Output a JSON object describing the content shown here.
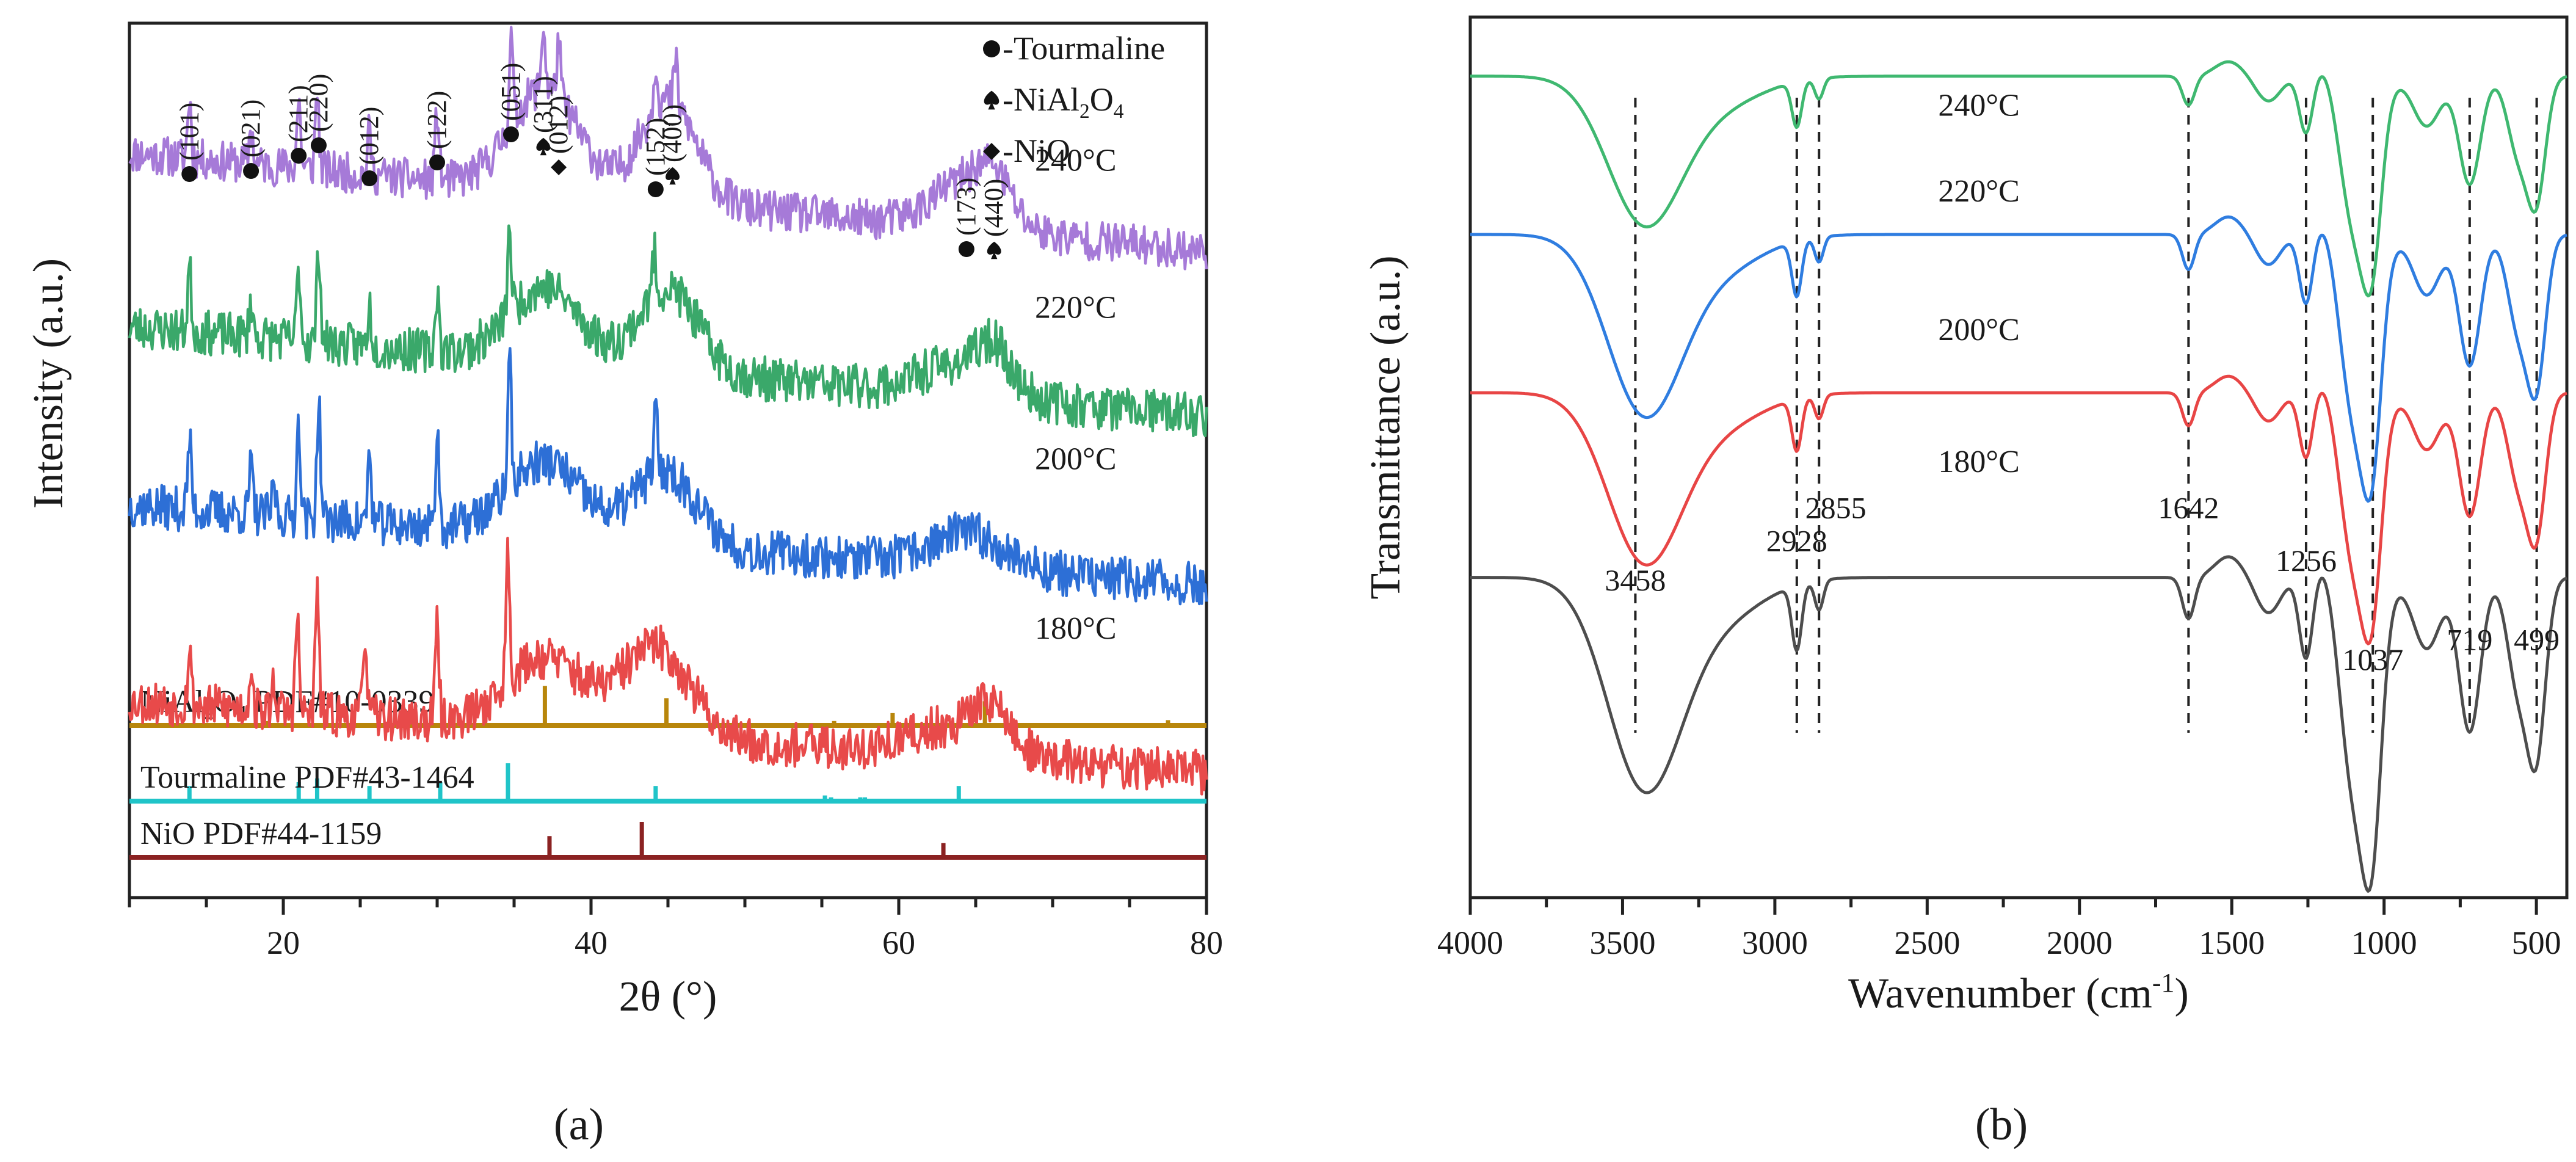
{
  "figure": {
    "panel_a_label": "(a)",
    "panel_b_label": "(b)"
  },
  "chart_data": [
    {
      "type": "line",
      "title": "",
      "xlabel": "2θ (°)",
      "ylabel": "Intensity (a.u.)",
      "xlim": [
        10,
        80
      ],
      "x_ticks": [
        20,
        40,
        60,
        80
      ],
      "x_tick_labels": [
        "20",
        "40",
        "60",
        "80"
      ],
      "colors": {
        "240": "#a67ad8",
        "220": "#3aa86a",
        "200": "#2d6fd6",
        "180": "#e84a4a"
      },
      "series": [
        {
          "name": "240°C",
          "color_key": "240",
          "baseline": 0.87,
          "tilt": 0.22,
          "noise": 0.045,
          "seed": 11,
          "peaks": [
            [
              13.9,
              0.42
            ],
            [
              17.9,
              0.26
            ],
            [
              21.0,
              0.48
            ],
            [
              22.2,
              0.56
            ],
            [
              25.6,
              0.3
            ],
            [
              30.0,
              0.5
            ],
            [
              34.8,
              0.62
            ],
            [
              36.9,
              0.45
            ],
            [
              37.9,
              0.4
            ],
            [
              44.2,
              0.32
            ],
            [
              45.5,
              0.3
            ]
          ],
          "humps": [
            [
              37.0,
              2.2,
              0.72
            ],
            [
              45.0,
              1.8,
              0.72
            ],
            [
              64.5,
              2.2,
              0.34
            ],
            [
              66.2,
              1.0,
              0.22
            ]
          ]
        },
        {
          "name": "220°C",
          "color_key": "220",
          "baseline": 0.5,
          "tilt": 0.2,
          "noise": 0.05,
          "seed": 23,
          "peaks": [
            [
              13.9,
              0.45
            ],
            [
              17.9,
              0.26
            ],
            [
              21.0,
              0.52
            ],
            [
              22.3,
              0.68
            ],
            [
              25.6,
              0.28
            ],
            [
              30.0,
              0.44
            ],
            [
              34.7,
              0.6
            ],
            [
              44.1,
              0.3
            ]
          ],
          "humps": [
            [
              37.0,
              2.3,
              0.52
            ],
            [
              45.0,
              1.9,
              0.58
            ],
            [
              64.0,
              2.5,
              0.22
            ],
            [
              66.2,
              1.0,
              0.25
            ]
          ]
        },
        {
          "name": "200°C",
          "color_key": "200",
          "baseline": 0.12,
          "tilt": 0.18,
          "noise": 0.05,
          "seed": 37,
          "peaks": [
            [
              13.9,
              0.48
            ],
            [
              17.9,
              0.34
            ],
            [
              19.4,
              0.22
            ],
            [
              21.0,
              0.68
            ],
            [
              22.3,
              0.82
            ],
            [
              25.6,
              0.48
            ],
            [
              30.0,
              0.68
            ],
            [
              34.7,
              0.9
            ],
            [
              44.2,
              0.42
            ]
          ],
          "humps": [
            [
              37.0,
              2.4,
              0.52
            ],
            [
              44.8,
              2.0,
              0.52
            ],
            [
              64.5,
              2.4,
              0.24
            ]
          ]
        },
        {
          "name": "180°C",
          "color_key": "180",
          "baseline": -0.3,
          "tilt": 0.16,
          "noise": 0.05,
          "seed": 53,
          "peaks": [
            [
              13.9,
              0.4
            ],
            [
              17.9,
              0.3
            ],
            [
              19.4,
              0.22
            ],
            [
              20.9,
              0.66
            ],
            [
              22.2,
              0.86
            ],
            [
              25.3,
              0.62
            ],
            [
              30.0,
              0.68
            ],
            [
              34.6,
              0.92
            ]
          ],
          "humps": [
            [
              37.0,
              2.5,
              0.5
            ],
            [
              44.2,
              2.2,
              0.62
            ],
            [
              64.0,
              2.8,
              0.22
            ],
            [
              66.0,
              1.0,
              0.24
            ]
          ]
        }
      ],
      "series_labels": [
        {
          "text": "240°C",
          "x": 71.5,
          "y": 1.05
        },
        {
          "text": "220°C",
          "x": 71.5,
          "y": 0.72
        },
        {
          "text": "200°C",
          "x": 71.5,
          "y": 0.38
        },
        {
          "text": "180°C",
          "x": 71.5,
          "y": 0.0
        }
      ],
      "peak_labels": [
        {
          "text": "(101)",
          "x": 13.9,
          "marker": "circle"
        },
        {
          "text": "(021)",
          "x": 17.9,
          "marker": "circle"
        },
        {
          "text": "(211)",
          "x": 21.0,
          "marker": "circle"
        },
        {
          "text": "(220)",
          "x": 22.3,
          "marker": "circle"
        },
        {
          "text": "(012)",
          "x": 25.6,
          "marker": "circle"
        },
        {
          "text": "(122)",
          "x": 30.0,
          "marker": "circle"
        },
        {
          "text": "(051)",
          "x": 34.8,
          "marker": "circle"
        },
        {
          "text": "(311)",
          "x": 36.9,
          "marker": "spade"
        },
        {
          "text": "(012)",
          "x": 37.9,
          "marker": "diamond"
        },
        {
          "text": "(152)",
          "x": 44.2,
          "marker": "circle"
        },
        {
          "text": "(400)",
          "x": 45.3,
          "marker": "spade"
        },
        {
          "text": "(173)",
          "x": 64.4,
          "marker": "circle"
        },
        {
          "text": "(440)",
          "x": 66.2,
          "marker": "spade"
        }
      ],
      "legend": [
        {
          "marker": "circle",
          "label": "-Tourmaline"
        },
        {
          "marker": "spade",
          "label": "-NiAl2O4",
          "formula": [
            "-NiAl",
            "2",
            "O",
            "4"
          ]
        },
        {
          "marker": "diamond",
          "label": "-NiO"
        }
      ],
      "references": [
        {
          "label": "NiAl2O4 PDF#10-0339",
          "formula": [
            "NiAl",
            "2",
            "O",
            "4",
            " PDF#10-0339"
          ],
          "color": "#b8860b",
          "lines": [
            [
              19.0,
              0.1
            ],
            [
              31.4,
              0.18
            ],
            [
              37.0,
              0.9
            ],
            [
              44.9,
              0.62
            ],
            [
              55.8,
              0.1
            ],
            [
              59.6,
              0.28
            ],
            [
              65.6,
              0.55
            ],
            [
              74.3,
              0.05
            ],
            [
              77.5,
              0.12
            ]
          ]
        },
        {
          "label": "Tourmaline PDF#43-1464",
          "color": "#20c4c8",
          "lines": [
            [
              13.9,
              0.4
            ],
            [
              21.0,
              0.5
            ],
            [
              22.2,
              0.6
            ],
            [
              25.6,
              0.4
            ],
            [
              30.2,
              0.5
            ],
            [
              34.6,
              1.0
            ],
            [
              44.2,
              0.4
            ],
            [
              55.2,
              0.15
            ],
            [
              55.6,
              0.1
            ],
            [
              57.5,
              0.1
            ],
            [
              57.8,
              0.1
            ],
            [
              63.9,
              0.4
            ]
          ]
        },
        {
          "label": "NiO PDF#44-1159",
          "color": "#8b2222",
          "lines": [
            [
              37.3,
              0.6
            ],
            [
              43.3,
              1.0
            ],
            [
              62.9,
              0.4
            ]
          ]
        }
      ]
    },
    {
      "type": "line",
      "title": "",
      "xlabel": "Wavenumber (cm-1)",
      "xlabel_parts": [
        "Wavenumber (cm",
        "-1",
        ")"
      ],
      "ylabel": "Transmittance (a.u.)",
      "xlim": [
        4000,
        400
      ],
      "x_ticks": [
        4000,
        3500,
        3000,
        2500,
        2000,
        1500,
        1000,
        500
      ],
      "x_tick_labels": [
        "4000",
        "3500",
        "3000",
        "2500",
        "2000",
        "1500",
        "1000",
        "500"
      ],
      "ylim": [
        0,
        1
      ],
      "colors": {
        "240": "#3fb870",
        "220": "#2f7de0",
        "200": "#e84545",
        "180": "#4d4d4d"
      },
      "series": [
        {
          "name": "240°C",
          "color_key": "240",
          "offset": 0.76,
          "scale": 0.7
        },
        {
          "name": "220°C",
          "color_key": "220",
          "offset": 0.52,
          "scale": 0.85
        },
        {
          "name": "200°C",
          "color_key": "200",
          "offset": 0.28,
          "scale": 0.8
        },
        {
          "name": "180°C",
          "color_key": "180",
          "offset": 0.0,
          "scale": 1.0
        }
      ],
      "profile": {
        "base": 0.82,
        "bands": [
          [
            3430,
            120,
            0.34
          ],
          [
            3200,
            150,
            0.07
          ],
          [
            2928,
            16,
            0.11
          ],
          [
            2855,
            14,
            0.05
          ],
          [
            1642,
            20,
            0.07
          ],
          [
            1380,
            40,
            0.06
          ],
          [
            1256,
            22,
            0.14
          ],
          [
            1090,
            55,
            0.38
          ],
          [
            1037,
            30,
            0.26
          ],
          [
            860,
            45,
            0.12
          ],
          [
            719,
            35,
            0.26
          ],
          [
            560,
            35,
            0.18
          ],
          [
            499,
            30,
            0.28
          ]
        ],
        "rises": [
          [
            1510,
            45,
            0.035
          ],
          [
            1185,
            35,
            0.06
          ]
        ]
      },
      "series_labels": [
        {
          "text": "240°C",
          "x": 2330,
          "y": 0.88
        },
        {
          "text": "220°C",
          "x": 2330,
          "y": 0.75
        },
        {
          "text": "200°C",
          "x": 2330,
          "y": 0.54
        },
        {
          "text": "180°C",
          "x": 2330,
          "y": 0.34
        }
      ],
      "band_labels": [
        {
          "text": "3458",
          "x": 3458,
          "y": 0.16
        },
        {
          "text": "2928",
          "x": 2928,
          "y": 0.22
        },
        {
          "text": "2855",
          "x": 2800,
          "y": 0.27
        },
        {
          "text": "1642",
          "x": 1642,
          "y": 0.27
        },
        {
          "text": "1256",
          "x": 1256,
          "y": 0.19
        },
        {
          "text": "1037",
          "x": 1037,
          "y": 0.04
        },
        {
          "text": "719",
          "x": 719,
          "y": 0.07
        },
        {
          "text": "499",
          "x": 499,
          "y": 0.07
        }
      ],
      "band_lines": [
        3458,
        2928,
        2855,
        1642,
        1256,
        1037,
        719,
        499
      ]
    }
  ]
}
